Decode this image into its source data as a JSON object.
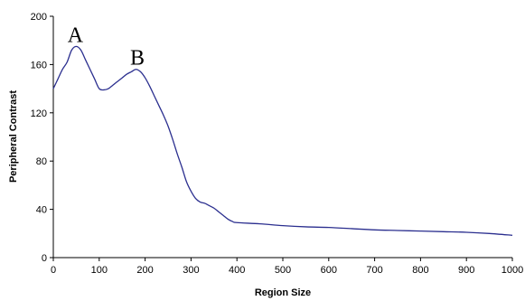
{
  "chart_data": {
    "type": "line",
    "xlabel": "Region Size",
    "ylabel": "Peripheral Contrast",
    "xlim": [
      0,
      1000
    ],
    "ylim": [
      0,
      200
    ],
    "x_ticks": [
      0,
      100,
      200,
      300,
      400,
      500,
      600,
      700,
      800,
      900,
      1000
    ],
    "y_ticks": [
      0,
      40,
      80,
      120,
      160,
      200
    ],
    "grid": false,
    "legend": "none",
    "series": [
      {
        "color": "#2b2f8f",
        "x": [
          0,
          10,
          20,
          30,
          40,
          50,
          60,
          70,
          80,
          90,
          100,
          110,
          120,
          130,
          140,
          150,
          160,
          170,
          180,
          190,
          200,
          210,
          220,
          230,
          240,
          250,
          260,
          270,
          280,
          290,
          300,
          310,
          320,
          330,
          340,
          350,
          360,
          370,
          380,
          390,
          400,
          450,
          500,
          550,
          600,
          650,
          700,
          750,
          800,
          850,
          900,
          950,
          1000
        ],
        "y": [
          140,
          148,
          156,
          162,
          172,
          175,
          172,
          164,
          156,
          148,
          140,
          139,
          140,
          143,
          146,
          149,
          152,
          154,
          156,
          154,
          149,
          142,
          134,
          126,
          118,
          109,
          98,
          86,
          75,
          63,
          55,
          49,
          46,
          45,
          43,
          41,
          38,
          35,
          32,
          30,
          29,
          28,
          26.5,
          25.5,
          25,
          24,
          23,
          22.5,
          22,
          21.5,
          21,
          20,
          18.5
        ]
      }
    ],
    "annotations": [
      {
        "text": "A",
        "x": 50,
        "y": 175
      },
      {
        "text": "B",
        "x": 185,
        "y": 156
      }
    ]
  }
}
